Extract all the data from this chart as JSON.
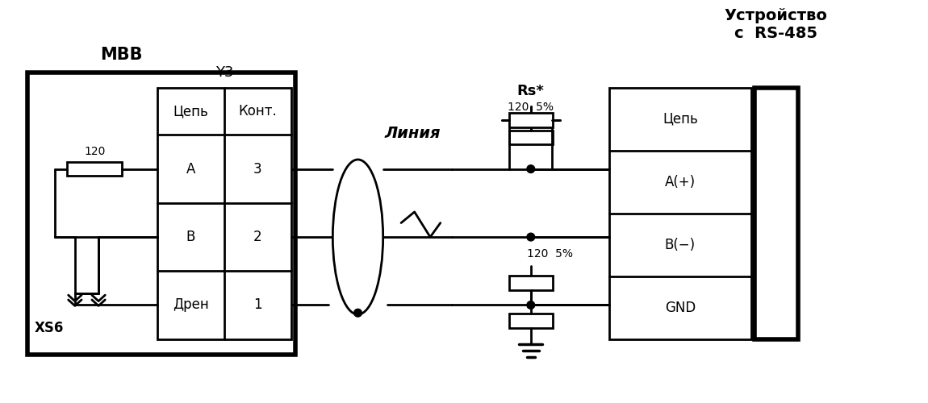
{
  "bg_color": "#ffffff",
  "line_color": "#000000",
  "title_mvv": "МВВ",
  "title_rs485": "Устройство\nс  RS-485",
  "label_y3": "Y3",
  "label_xs6": "XS6",
  "label_rs": "Rs*",
  "label_linia": "Линия",
  "label_120_left": "120",
  "label_120_rs_top": "120  5%",
  "label_120_rs_bot": "120  5%",
  "table_headers": [
    "Цепь",
    "Конт."
  ],
  "table_rows": [
    [
      "А",
      "3"
    ],
    [
      "В",
      "2"
    ],
    [
      "Дрен",
      "1"
    ]
  ],
  "right_table_rows": [
    "Цепь",
    "А(+)",
    "В(−)",
    "GND"
  ],
  "font_size": 12,
  "lw": 2.0,
  "lw_thick": 4.0
}
